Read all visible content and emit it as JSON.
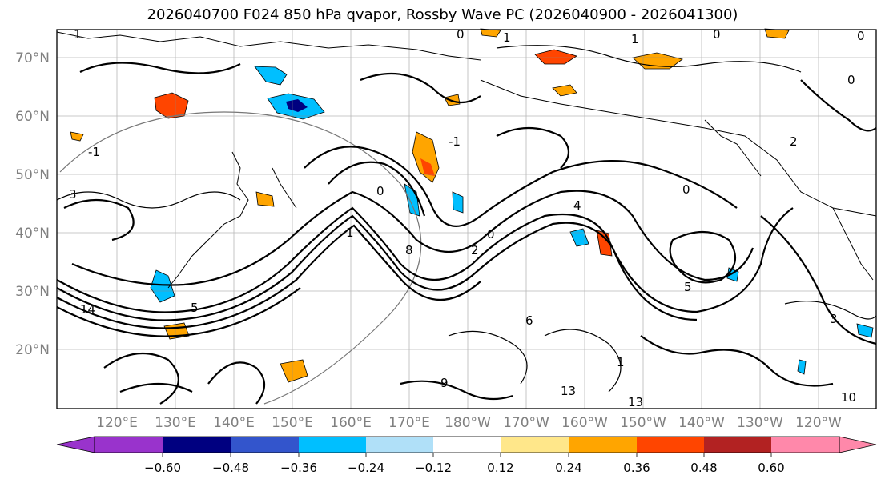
{
  "title": "2026040700 F024 850 hPa qvapor, Rossby Wave PC (2026040900 - 2026041300)",
  "map": {
    "lat_labels": [
      "70°N",
      "60°N",
      "50°N",
      "40°N",
      "30°N",
      "20°N"
    ],
    "lat_values": [
      70,
      60,
      50,
      40,
      30,
      20
    ],
    "lon_labels": [
      "120°E",
      "130°E",
      "140°E",
      "150°E",
      "160°E",
      "170°E",
      "180°W",
      "170°W",
      "160°W",
      "150°W",
      "140°W",
      "130°W",
      "120°W"
    ],
    "lon_values": [
      120,
      130,
      140,
      150,
      160,
      170,
      180,
      190,
      200,
      210,
      220,
      230,
      240
    ],
    "contour_labels": [
      "1",
      "0",
      "1",
      "0",
      "1",
      "0",
      "0",
      "0",
      "2",
      "-1",
      "-1",
      "1",
      "3",
      "14",
      "0",
      "5",
      "4",
      "8",
      "0",
      "2",
      "9",
      "1",
      "13",
      "13",
      "3",
      "10",
      "6",
      "5"
    ]
  },
  "colorbar": {
    "ticks": [
      "−0.60",
      "−0.48",
      "−0.36",
      "−0.24",
      "−0.12",
      "0.12",
      "0.24",
      "0.36",
      "0.48",
      "0.60"
    ],
    "colors": [
      "#9933cc",
      "#000080",
      "#3355cc",
      "#00bfff",
      "#b0e0f8",
      "#ffffff",
      "#ffe78a",
      "#ffa500",
      "#ff4500",
      "#b22222",
      "#ff88aa"
    ]
  }
}
